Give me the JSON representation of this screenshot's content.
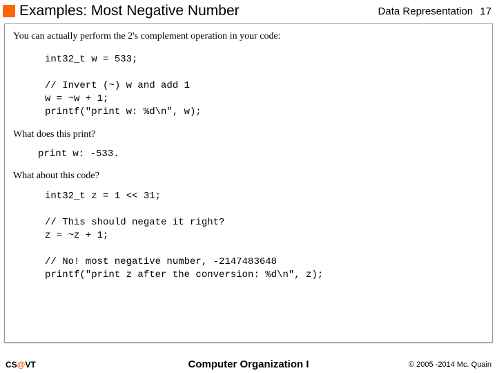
{
  "header": {
    "title": "Examples: Most Negative Number",
    "topic": "Data Representation",
    "page": "17"
  },
  "body": {
    "intro": "You can actually perform the 2's complement operation in your code:",
    "code1_l1": "int32_t w = 533;",
    "code1_l2": "// Invert (~) w and add 1",
    "code1_l3": "w = ~w + 1;",
    "code1_l4": "printf(\"print w: %d\\n\", w);",
    "q1": "What does this print?",
    "output1": "print w: -533.",
    "q2": "What about this code?",
    "code2_l1": "int32_t z = 1 << 31;",
    "code2_l2": "// This should negate it right?",
    "code2_l3": "z = ~z + 1;",
    "code2_l4": "// No! most negative number, -2147483648",
    "code2_l5": "printf(\"print z after the conversion: %d\\n\", z);"
  },
  "footer": {
    "left_cs": "CS",
    "left_at": "@",
    "left_vt": "VT",
    "center": "Computer Organization I",
    "right": "© 2005 -2014 Mc. Quain"
  }
}
